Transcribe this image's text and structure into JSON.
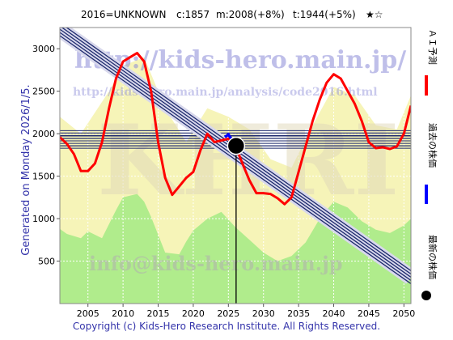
{
  "header": {
    "code": "2016=UNKNOWN",
    "current": "c:1857",
    "mid": "m:2008(+8%)",
    "target": "t:1944(+5%)",
    "stars": "★☆"
  },
  "side_text": "Generated on Monday 2026/1/5.",
  "footer": "Copyright (c) Kids-Hero Research Institute. All Rights Reserved.",
  "watermarks": {
    "url": "http://kids-hero.main.jp/",
    "analysis_url": "http://kids-hero.main.jp/analysis/code2016.html",
    "email": "info@kids-hero.main.jp",
    "logo": "KHRI"
  },
  "legend": [
    {
      "label": "ＡＩ予測",
      "color": "#ff0000",
      "marker": "line"
    },
    {
      "label": "過去の株価",
      "color": "#0000ff",
      "marker": "line"
    },
    {
      "label": "最新の株価",
      "color": "#000000",
      "marker": "dot"
    }
  ],
  "colors": {
    "plot_bg": "#ffffff",
    "band_yellow": "#f6f4b8",
    "band_green": "#b0ec8c",
    "prediction": "#ff0000",
    "past": "#0000ff",
    "channel": "#1e2a6e",
    "marker": "#000000"
  },
  "chart_data": {
    "type": "line",
    "xlim": [
      2001,
      2051
    ],
    "ylim": [
      0,
      3250
    ],
    "x_ticks": [
      2005,
      2010,
      2015,
      2020,
      2025,
      2030,
      2035,
      2040,
      2045,
      2050
    ],
    "y_ticks": [
      500,
      1000,
      1500,
      2000,
      2500,
      3000
    ],
    "grid": true,
    "latest": {
      "x": 2026.1,
      "y": 1857
    },
    "horizontal_lines": [
      2008,
      1944,
      1857
    ],
    "trend_channel": {
      "x": [
        2001,
        2051
      ],
      "y": [
        3230,
        310
      ]
    },
    "series": [
      {
        "name": "ＡＩ予測",
        "x": [
          2001,
          2002,
          2003,
          2004,
          2005,
          2006,
          2007,
          2008,
          2009,
          2010,
          2011,
          2012,
          2013,
          2014,
          2015,
          2016,
          2017,
          2018,
          2019,
          2020,
          2021,
          2022,
          2023,
          2024,
          2025,
          2026,
          2027,
          2028,
          2029,
          2030,
          2031,
          2032,
          2033,
          2034,
          2035,
          2036,
          2037,
          2038,
          2039,
          2040,
          2041,
          2042,
          2043,
          2044,
          2045,
          2046,
          2047,
          2048,
          2049,
          2050,
          2051
        ],
        "y": [
          1960,
          1880,
          1760,
          1560,
          1560,
          1650,
          1900,
          2300,
          2650,
          2850,
          2900,
          2950,
          2850,
          2500,
          1900,
          1480,
          1280,
          1380,
          1480,
          1550,
          1800,
          2000,
          1900,
          1920,
          1940,
          1857,
          1650,
          1450,
          1300,
          1300,
          1290,
          1240,
          1170,
          1250,
          1550,
          1850,
          2150,
          2400,
          2600,
          2700,
          2650,
          2500,
          2350,
          2150,
          1900,
          1830,
          1840,
          1820,
          1850,
          2000,
          2330
        ]
      },
      {
        "name": "過去の株価",
        "x": [
          2024.5,
          2025,
          2025.5,
          2026.1
        ],
        "y": [
          1960,
          1990,
          1930,
          1857
        ]
      }
    ],
    "band_upper": {
      "x": [
        2001,
        2004,
        2008,
        2010,
        2013,
        2016,
        2019,
        2022,
        2025,
        2028,
        2031,
        2034,
        2037,
        2040,
        2043,
        2046,
        2049,
        2051
      ],
      "y": [
        2200,
        2000,
        2500,
        2800,
        2900,
        2300,
        1900,
        2300,
        2200,
        2050,
        1700,
        1600,
        2100,
        2550,
        2450,
        2100,
        2050,
        2450
      ]
    },
    "band_lower": {
      "x": [
        2001,
        2002,
        2004,
        2005,
        2007,
        2009,
        2010,
        2012,
        2013,
        2014,
        2016,
        2018,
        2019,
        2020,
        2022,
        2024,
        2026,
        2028,
        2030,
        2032,
        2034,
        2036,
        2038,
        2040,
        2042,
        2044,
        2046,
        2048,
        2050,
        2051
      ],
      "y": [
        880,
        820,
        770,
        850,
        770,
        1100,
        1250,
        1290,
        1200,
        1020,
        600,
        580,
        730,
        860,
        1000,
        1080,
        900,
        750,
        600,
        500,
        560,
        720,
        1000,
        1200,
        1130,
        970,
        870,
        830,
        920,
        1000
      ]
    }
  }
}
